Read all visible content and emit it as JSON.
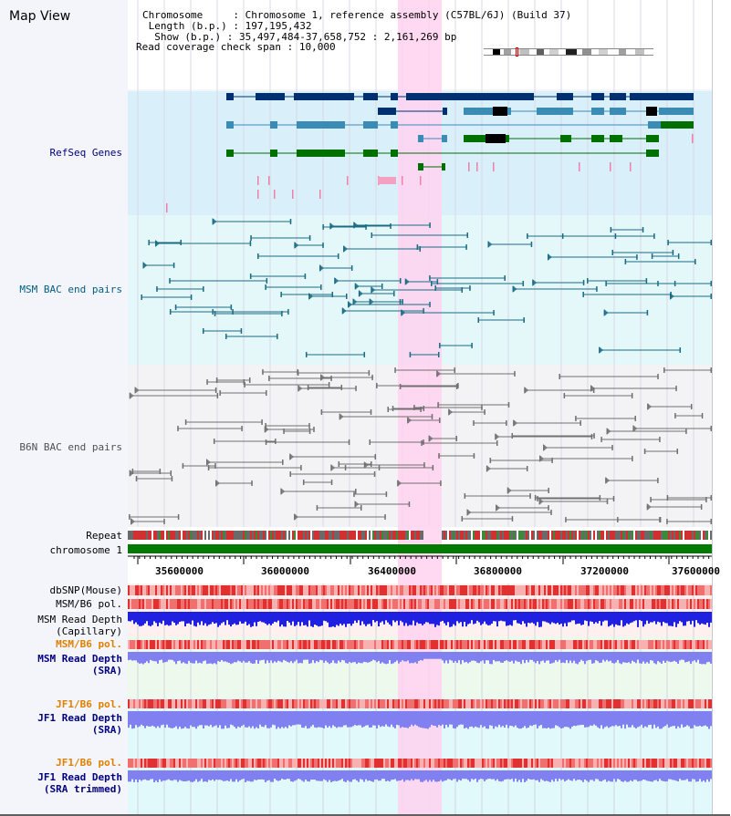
{
  "title": "Map View",
  "info": {
    "chromosome_key": "Chromosome",
    "chromosome_val": "Chromosome 1, reference assembly (C57BL/6J) (Build 37)",
    "length_key": "Length (b.p.)",
    "length_val": "197,195,432",
    "show_key": "Show (b.p.)",
    "show_val": "35,497,484-37,658,752 : 2,161,269 bp",
    "coverage_key": "Read coverage check span",
    "coverage_val": "10,000"
  },
  "tracks": {
    "refseq": "RefSeq Genes",
    "msm_bac": "MSM BAC end pairs",
    "b6n_bac": "B6N BAC end pairs",
    "repeat": "Repeat",
    "chromosome": "chromosome 1",
    "dbsnp": "dbSNP(Mouse)",
    "msm_b6_pol": "MSM/B6 pol.",
    "msm_read_depth_cap_1": "MSM Read Depth",
    "msm_read_depth_cap_2": "(Capillary)",
    "msm_b6_pol_2": "MSM/B6 pol.",
    "msm_read_depth_sra_1": "MSM Read Depth",
    "msm_read_depth_sra_2": "(SRA)",
    "jf1_b6_pol": "JF1/B6 pol.",
    "jf1_read_depth_sra_1": "JF1 Read Depth",
    "jf1_read_depth_sra_2": "(SRA)",
    "jf1_b6_pol_2": "JF1/B6 pol.",
    "jf1_read_depth_trim_1": "JF1 Read Depth",
    "jf1_read_depth_trim_2": "(SRA trimmed)"
  },
  "axis_ticks": [
    "35600000",
    "36000000",
    "36400000",
    "36800000",
    "37200000",
    "37600000"
  ],
  "colors": {
    "refseq_bg": "#d9f0fb",
    "msm_bg": "#e4f7f9",
    "b6n_bg": "#f3f3f6",
    "highlight": "#ffd2f0",
    "refseq_dark": "#003070",
    "refseq_mid": "#3a8cb4",
    "refseq_green": "#007000",
    "msm_line": "#1a6c84",
    "b6n_line": "#707070",
    "chrom_green": "#007a00",
    "depth_blue": "#2020e0",
    "depth_light": "#8080f0",
    "label_navy": "#000080",
    "label_teal": "#006080",
    "label_orange": "#e08000"
  }
}
